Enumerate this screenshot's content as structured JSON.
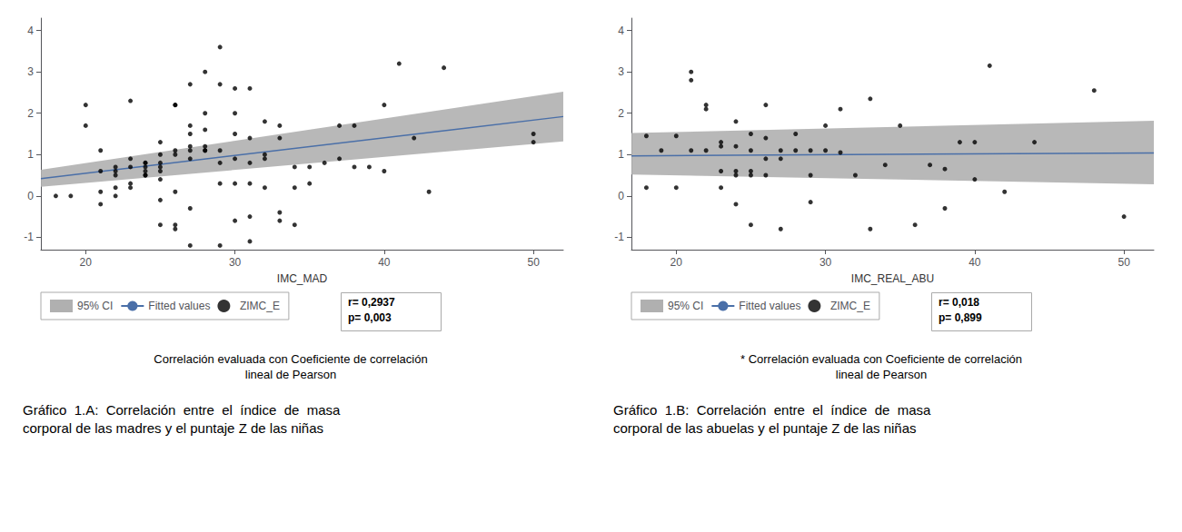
{
  "chart_data": [
    {
      "type": "scatter",
      "title": "Gráfico  1.A:  Correlación  entre  el  índice  de  masa\ncorporal de las madres y el puntaje Z de las niñas",
      "subtitle": "Correlación evaluada con Coeficiente de correlación\nlineal de Pearson",
      "xlabel": "IMC_MAD",
      "xlim": [
        17,
        52
      ],
      "ylim": [
        -1.3,
        4.3
      ],
      "xticks": [
        20,
        30,
        40,
        50
      ],
      "yticks": [
        -1,
        0,
        1,
        2,
        3,
        4
      ],
      "grid": false,
      "annotations": [
        "r= 0,2937",
        "p= 0,003"
      ],
      "series": [
        {
          "name": "95% CI",
          "type": "band",
          "color": "#b0b0b0",
          "x": [
            17,
            52
          ],
          "lower": [
            0.22,
            1.32
          ],
          "upper": [
            0.63,
            2.52
          ]
        },
        {
          "name": "Fitted values",
          "type": "line",
          "color": "#4a6fa8",
          "x": [
            17,
            52
          ],
          "values": [
            0.42,
            1.92
          ]
        },
        {
          "name": "ZIMC_E",
          "type": "scatter",
          "color": "black",
          "x": [
            18,
            19,
            20,
            20,
            21,
            21,
            21,
            21,
            22,
            22,
            22,
            22,
            22,
            23,
            23,
            23,
            23,
            23,
            24,
            24,
            24,
            24,
            24,
            24,
            25,
            25,
            25,
            25,
            25,
            25,
            25,
            25,
            26,
            26,
            26,
            26,
            26,
            26,
            26,
            27,
            27,
            27,
            27,
            27,
            27,
            27,
            27,
            28,
            28,
            28,
            28,
            28,
            28,
            29,
            29,
            29,
            29,
            29,
            29,
            30,
            30,
            30,
            30,
            30,
            30,
            31,
            31,
            31,
            31,
            31,
            31,
            32,
            32,
            32,
            32,
            33,
            33,
            33,
            33,
            34,
            34,
            34,
            35,
            35,
            36,
            37,
            37,
            38,
            38,
            39,
            40,
            40,
            41,
            42,
            43,
            44,
            50,
            50
          ],
          "values": [
            0.0,
            0.0,
            2.2,
            1.7,
            1.1,
            0.6,
            0.1,
            -0.2,
            0.6,
            0.0,
            0.5,
            0.2,
            0.7,
            2.3,
            0.7,
            0.3,
            0.2,
            0.9,
            0.8,
            0.7,
            0.6,
            0.5,
            0.5,
            0.8,
            1.3,
            1.0,
            0.8,
            0.7,
            0.6,
            0.4,
            -0.1,
            -0.7,
            2.2,
            2.2,
            1.0,
            1.1,
            0.1,
            -0.7,
            -0.8,
            2.7,
            1.7,
            1.5,
            1.2,
            1.1,
            0.9,
            -0.3,
            -1.2,
            3.0,
            2.0,
            1.6,
            1.2,
            1.1,
            1.1,
            3.6,
            2.7,
            1.1,
            0.8,
            0.3,
            -1.2,
            2.6,
            2.0,
            1.5,
            0.9,
            0.3,
            -0.6,
            2.6,
            1.4,
            0.8,
            0.3,
            -0.5,
            -1.1,
            1.8,
            1.0,
            0.9,
            0.2,
            1.7,
            1.4,
            -0.4,
            -0.6,
            0.7,
            0.2,
            -0.7,
            0.7,
            0.3,
            0.8,
            1.7,
            0.9,
            1.7,
            0.7,
            0.7,
            0.6,
            2.2,
            3.2,
            1.4,
            0.1,
            3.1,
            1.3,
            1.5
          ]
        }
      ]
    },
    {
      "type": "scatter",
      "title": "Gráfico  1.B:  Correlación  entre  el  índice  de  masa\ncorporal de las abuelas y el puntaje Z de las niñas",
      "subtitle": "* Correlación evaluada con Coeficiente de correlación\nlineal de Pearson",
      "xlabel": "IMC_REAL_ABU",
      "xlim": [
        17,
        52
      ],
      "ylim": [
        -1.3,
        4.3
      ],
      "xticks": [
        20,
        30,
        40,
        50
      ],
      "yticks": [
        -1,
        0,
        1,
        2,
        3,
        4
      ],
      "grid": false,
      "annotations": [
        "r= 0,018",
        "p= 0,899"
      ],
      "series": [
        {
          "name": "95% CI",
          "type": "band",
          "color": "#b0b0b0",
          "x": [
            17,
            52
          ],
          "lower": [
            0.52,
            0.28
          ],
          "upper": [
            1.52,
            1.82
          ]
        },
        {
          "name": "Fitted values",
          "type": "line",
          "color": "#4a6fa8",
          "x": [
            17,
            52
          ],
          "values": [
            0.97,
            1.04
          ]
        },
        {
          "name": "ZIMC_E",
          "type": "scatter",
          "color": "black",
          "x": [
            18,
            18,
            19,
            20,
            20,
            21,
            21,
            21,
            22,
            22,
            22,
            23,
            23,
            23,
            23,
            24,
            24,
            24,
            24,
            24,
            25,
            25,
            25,
            25,
            25,
            26,
            26,
            26,
            26,
            27,
            27,
            27,
            28,
            28,
            29,
            29,
            29,
            30,
            30,
            31,
            31,
            32,
            33,
            33,
            34,
            35,
            36,
            37,
            38,
            38,
            39,
            40,
            40,
            41,
            42,
            44,
            48,
            50
          ],
          "values": [
            1.45,
            0.2,
            1.1,
            1.45,
            0.2,
            3.0,
            2.8,
            1.1,
            2.2,
            2.1,
            1.1,
            1.3,
            1.2,
            0.6,
            0.2,
            1.8,
            1.2,
            0.6,
            0.5,
            -0.2,
            1.5,
            1.1,
            0.6,
            0.5,
            -0.7,
            2.2,
            1.4,
            0.9,
            0.5,
            1.1,
            0.9,
            -0.8,
            1.5,
            1.1,
            1.1,
            0.5,
            -0.15,
            1.7,
            1.1,
            2.1,
            1.05,
            0.5,
            -0.8,
            2.35,
            0.75,
            1.7,
            -0.7,
            0.75,
            -0.3,
            0.65,
            1.3,
            1.3,
            0.4,
            3.15,
            0.1,
            1.3,
            2.55,
            -0.5
          ]
        }
      ]
    }
  ]
}
